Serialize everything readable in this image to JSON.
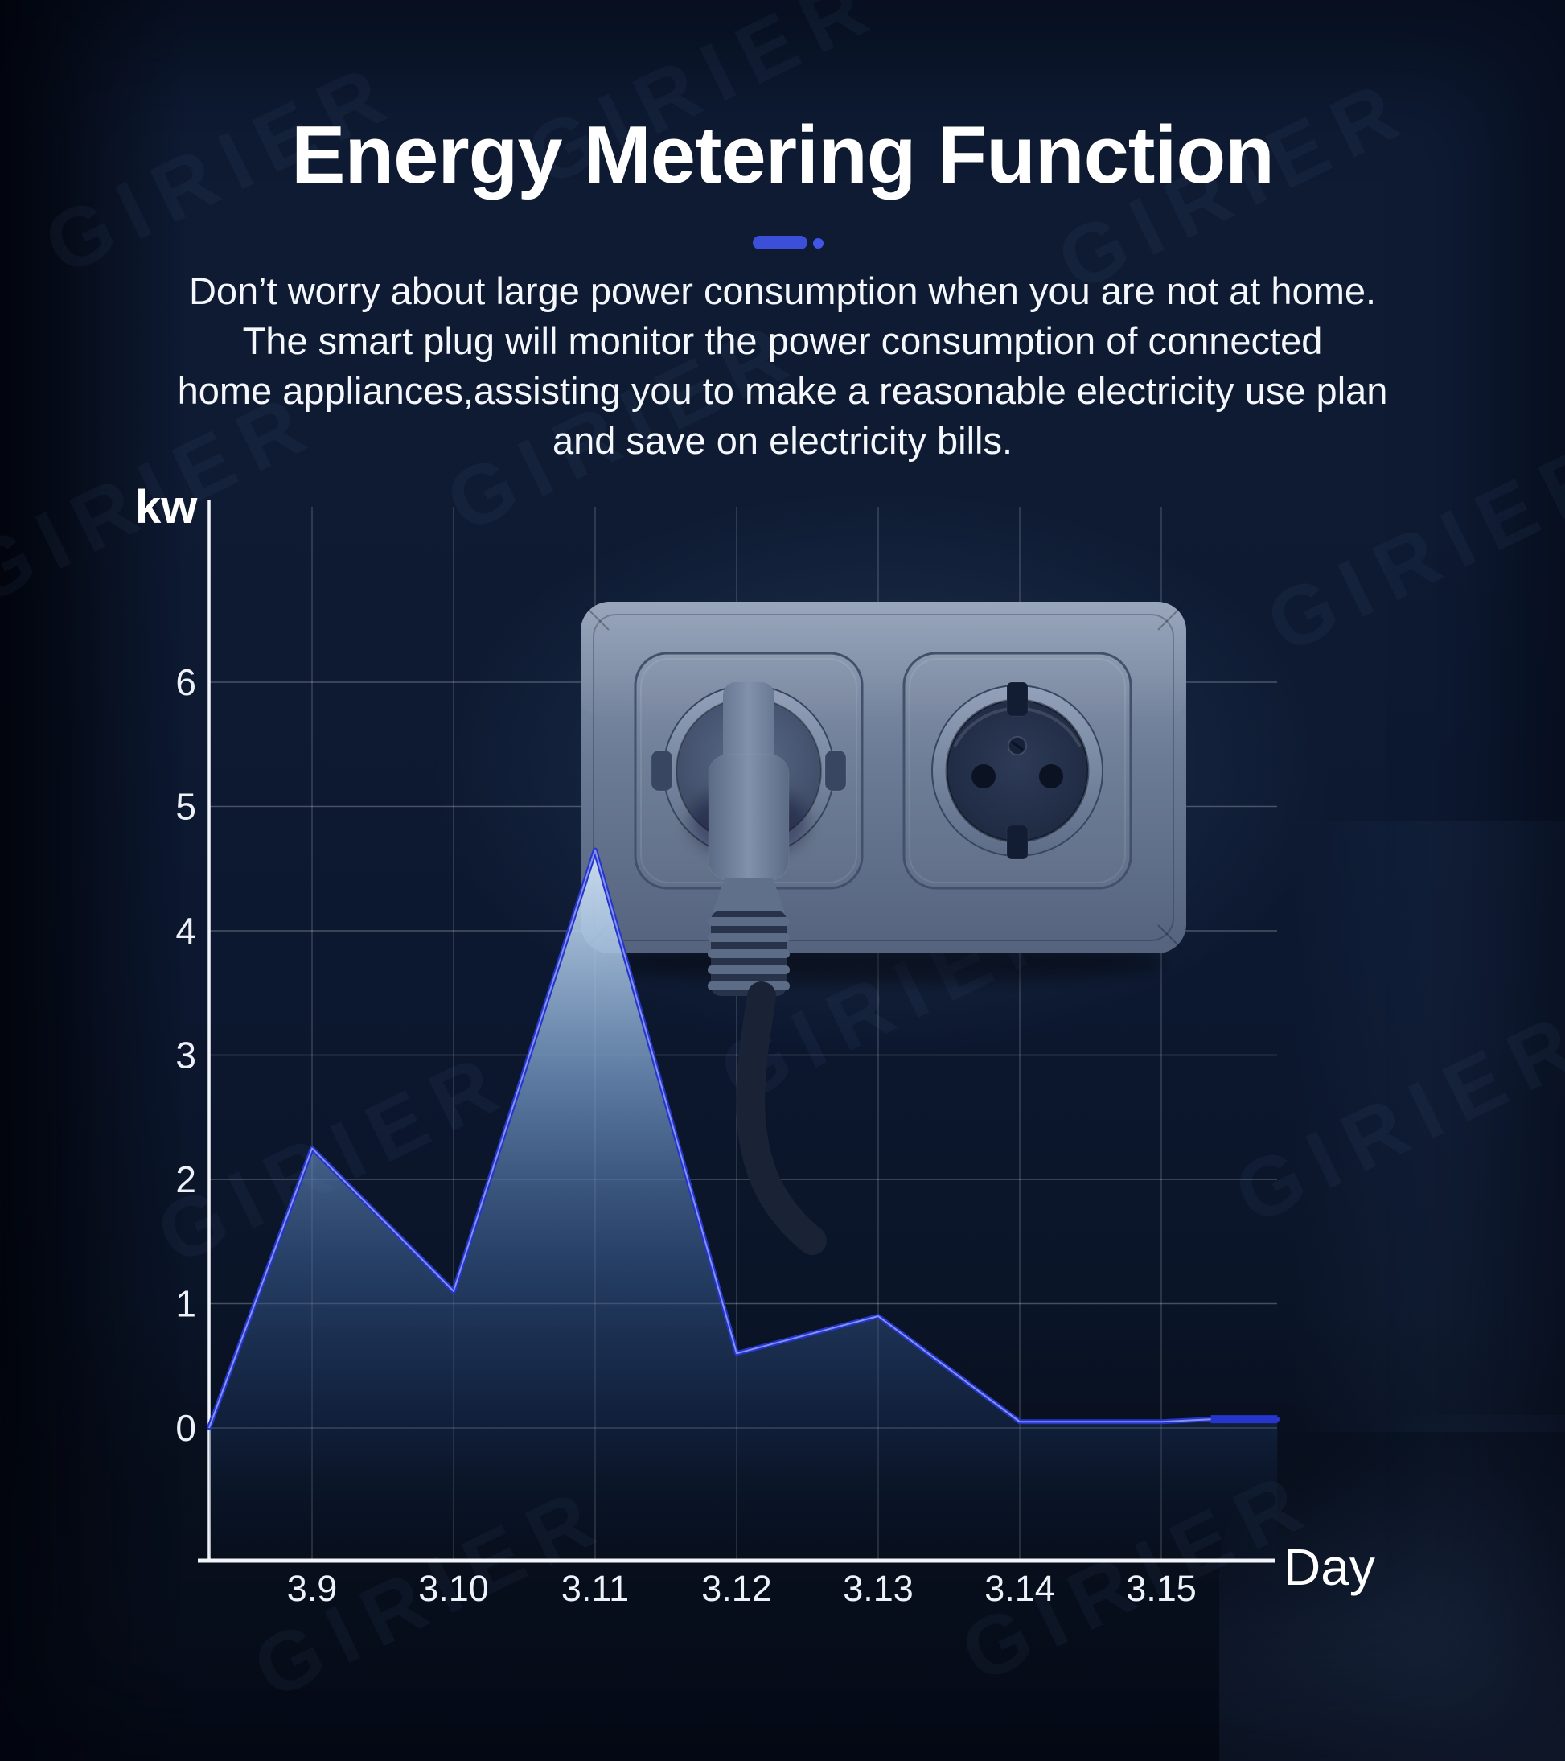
{
  "title": "Energy Metering Function",
  "underline_color": "#3c4fd9",
  "watermark": "GIRIER",
  "description": {
    "lines": [
      "Don’t worry about large power consumption when you are not at home.",
      "The smart plug will monitor the power consumption of connected",
      "home appliances,assisting you to make a reasonable electricity use plan",
      "and save on electricity bills."
    ]
  },
  "chart_data": {
    "type": "area",
    "title": "",
    "ylabel": "kw",
    "xlabel": "Day",
    "categories": [
      "3.9",
      "3.10",
      "3.11",
      "3.12",
      "3.13",
      "3.14",
      "3.15"
    ],
    "values": [
      2.25,
      1.1,
      4.65,
      0.6,
      0.9,
      0.05,
      0.05
    ],
    "y_ticks": [
      0,
      1,
      2,
      3,
      4,
      5,
      6
    ],
    "ylim": [
      0,
      6
    ],
    "grid": true,
    "legend_position": "none",
    "note": "line starts at 0 on the y-axis before 3.9 and runs flat to the right edge after 3.15",
    "line_color": "#2635cc",
    "line_core_color": "#8392ee",
    "area_top_color": "#d4e4f4",
    "area_bottom_color": "#0c1a34",
    "extended_points": [
      [
        -0.728,
        0
      ],
      [
        0,
        2.25
      ],
      [
        1,
        1.1
      ],
      [
        2,
        4.65
      ],
      [
        3,
        0.6
      ],
      [
        4,
        0.9
      ],
      [
        5,
        0.05
      ],
      [
        6,
        0.05
      ],
      [
        6.35,
        0.07
      ],
      [
        6.82,
        0.07
      ]
    ]
  }
}
